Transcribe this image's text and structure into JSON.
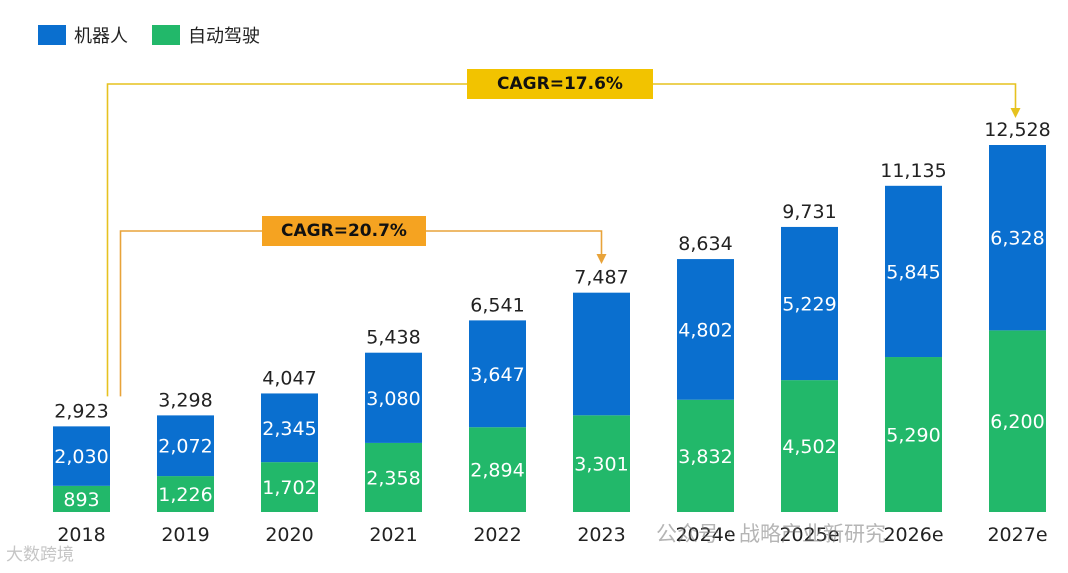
{
  "legend": [
    {
      "label": "机器人",
      "color": "#0A6FCF"
    },
    {
      "label": "自动驾驶",
      "color": "#22B86A"
    }
  ],
  "cagr": [
    {
      "label": "CAGR=17.6%",
      "from": "2018",
      "to": "2027e",
      "color": "#F2C300",
      "line_color": "#E6C21F"
    },
    {
      "label": "CAGR=20.7%",
      "from": "2018",
      "to": "2023",
      "color": "#F5A321",
      "line_color": "#E8A33A"
    }
  ],
  "watermark": {
    "center": "公众号 · 战略产业新研究",
    "left": "大数跨境"
  },
  "chart_data": {
    "type": "bar",
    "stacked": true,
    "categories": [
      "2018",
      "2019",
      "2020",
      "2021",
      "2022",
      "2023",
      "2024e",
      "2025e",
      "2026e",
      "2027e"
    ],
    "series": [
      {
        "name": "自动驾驶",
        "color": "#22B86A",
        "values": [
          893,
          1226,
          1702,
          2358,
          2894,
          3301,
          3832,
          4502,
          5290,
          6200
        ],
        "labels": [
          "893",
          "1,226",
          "1,702",
          "2,358",
          "2,894",
          "3,301",
          "3,832",
          "4,502",
          "5,290",
          "6,200"
        ]
      },
      {
        "name": "机器人",
        "color": "#0A6FCF",
        "values": [
          2030,
          2072,
          2345,
          3080,
          3647,
          4186,
          4802,
          5229,
          5845,
          6328
        ],
        "labels": [
          "2,030",
          "2,072",
          "2,345",
          "3,080",
          "3,647",
          "",
          "4,802",
          "5,229",
          "5,845",
          "6,328"
        ]
      }
    ],
    "totals": [
      2923,
      3298,
      4047,
      5438,
      6541,
      7487,
      8634,
      9731,
      11135,
      12528
    ],
    "total_labels": [
      "2,923",
      "3,298",
      "4,047",
      "5,438",
      "6,541",
      "7,487",
      "8,634",
      "9,731",
      "11,135",
      "12,528"
    ],
    "ylim": [
      0,
      13000
    ],
    "grid": false,
    "legend_position": "top-left"
  }
}
